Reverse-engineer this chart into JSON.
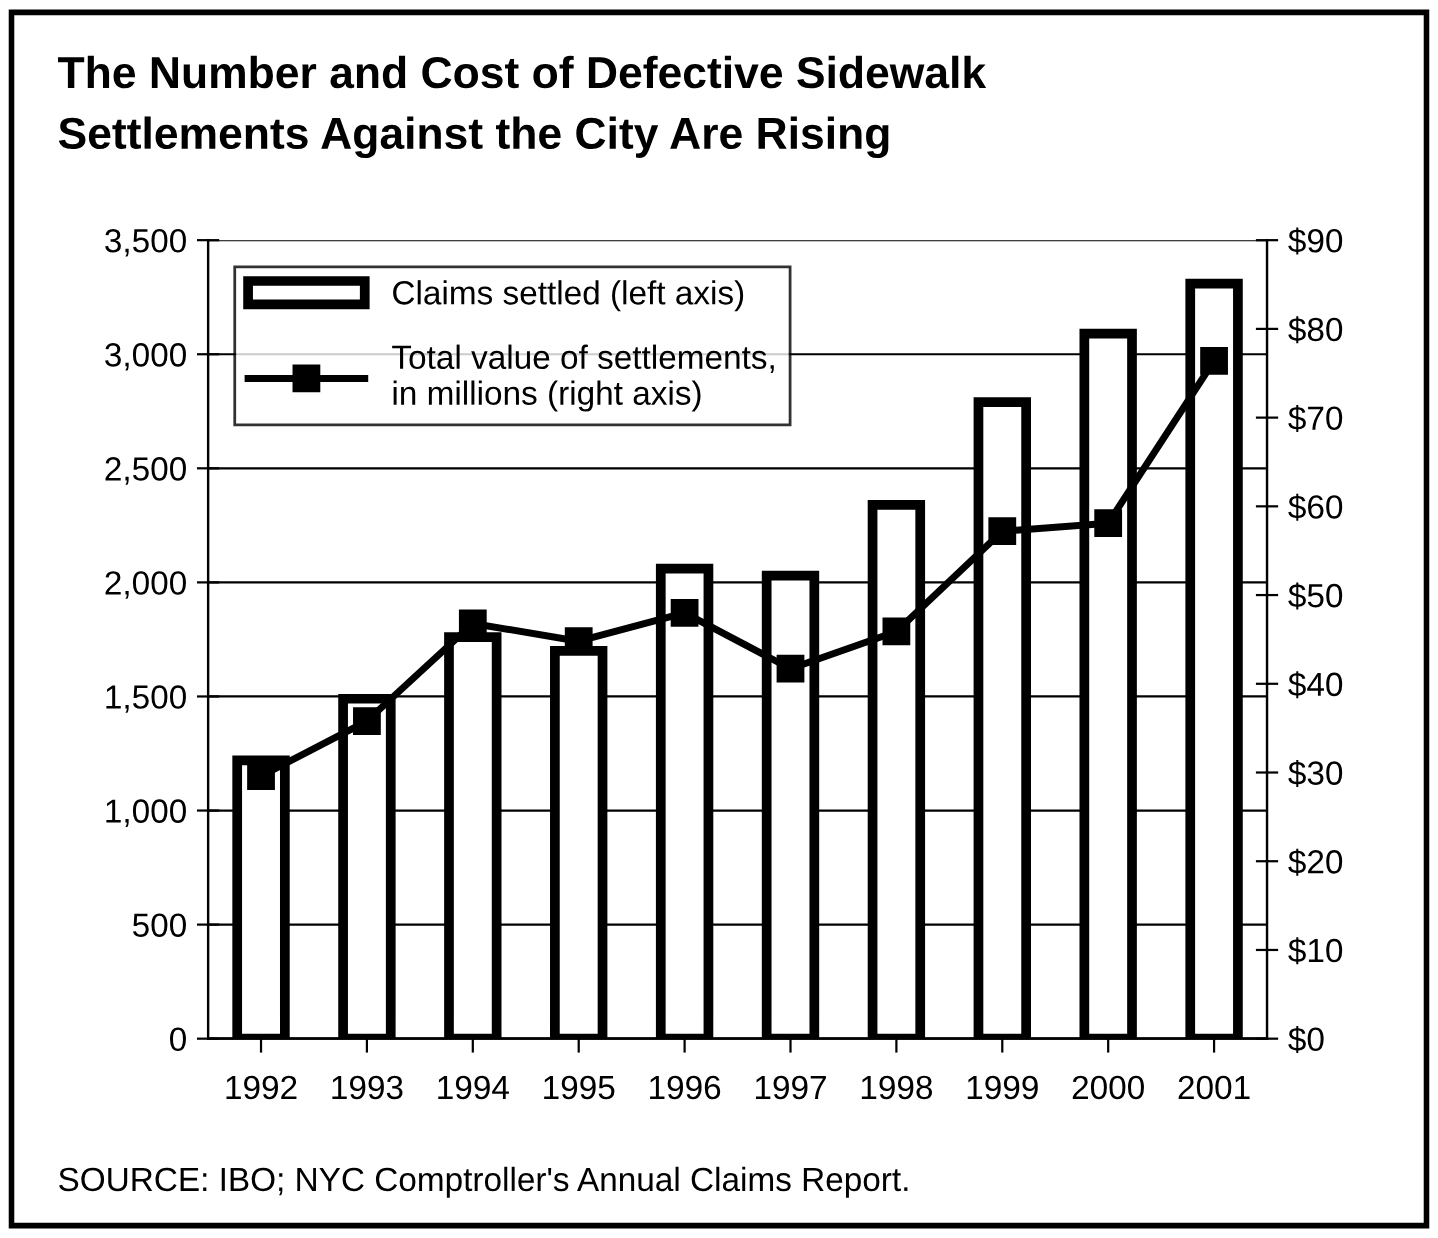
{
  "chart_data": {
    "type": "bar",
    "title": "The Number and Cost of Defective Sidewalk\nSettlements Against the City Are Rising",
    "categories": [
      "1992",
      "1993",
      "1994",
      "1995",
      "1996",
      "1997",
      "1998",
      "1999",
      "2000",
      "2001"
    ],
    "series": [
      {
        "name": "Claims settled (left axis)",
        "color": "#ffffff",
        "values": [
          1220,
          1490,
          1760,
          1700,
          2060,
          2030,
          2340,
          2790,
          3090,
          3310
        ]
      },
      {
        "name": "Total value of settlements,\nin millions (right axis)",
        "type": "line",
        "axis": "y2",
        "color": "#000000",
        "marker": "square",
        "values": [
          29.6,
          35.8,
          46.8,
          44.8,
          48.0,
          41.7,
          45.9,
          57.2,
          58.1,
          76.4
        ]
      }
    ],
    "ylim": [
      0,
      3500
    ],
    "yticks": [
      {
        "value": 0,
        "label": "0"
      },
      {
        "value": 500,
        "label": "500"
      },
      {
        "value": 1000,
        "label": "1,000"
      },
      {
        "value": 1500,
        "label": "1,500"
      },
      {
        "value": 2000,
        "label": "2,000"
      },
      {
        "value": 2500,
        "label": "2,500"
      },
      {
        "value": 3000,
        "label": "3,000"
      },
      {
        "value": 3500,
        "label": "3,500"
      }
    ],
    "y2lim": [
      0,
      90
    ],
    "y2ticks": [
      {
        "value": 0,
        "label": "$0"
      },
      {
        "value": 10,
        "label": "$10"
      },
      {
        "value": 20,
        "label": "$20"
      },
      {
        "value": 30,
        "label": "$30"
      },
      {
        "value": 40,
        "label": "$40"
      },
      {
        "value": 50,
        "label": "$50"
      },
      {
        "value": 60,
        "label": "$60"
      },
      {
        "value": 70,
        "label": "$70"
      },
      {
        "value": 80,
        "label": "$80"
      },
      {
        "value": 90,
        "label": "$90"
      }
    ],
    "grid": "y",
    "legend": "top left",
    "annotations": [
      "SOURCE: IBO; NYC Comptroller's Annual Claims Report."
    ]
  }
}
